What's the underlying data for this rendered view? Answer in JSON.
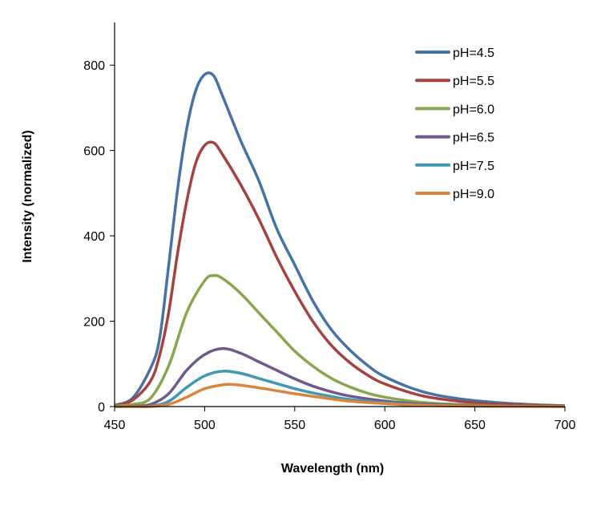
{
  "chart_data": {
    "type": "line",
    "title": "",
    "xlabel": "Wavelength (nm)",
    "ylabel": "Intensity (normalized)",
    "xlim": [
      450,
      700
    ],
    "ylim": [
      0,
      900
    ],
    "xticks": [
      450,
      500,
      550,
      600,
      650,
      700
    ],
    "yticks": [
      0,
      200,
      400,
      600,
      800
    ],
    "grid": false,
    "legend_position": "top-right",
    "series": [
      {
        "name": "pH=4.5",
        "color": "#4672A8",
        "x": [
          450,
          460,
          470,
          475,
          480,
          485,
          490,
          495,
          500,
          505,
          510,
          520,
          530,
          540,
          550,
          560,
          570,
          580,
          590,
          600,
          620,
          640,
          660,
          680,
          700
        ],
        "y": [
          3,
          20,
          90,
          160,
          330,
          510,
          650,
          740,
          778,
          775,
          727,
          623,
          530,
          417,
          332,
          248,
          182,
          135,
          98,
          70,
          36,
          19,
          10,
          5,
          2
        ]
      },
      {
        "name": "pH=5.5",
        "color": "#A5423F",
        "x": [
          450,
          460,
          470,
          475,
          480,
          485,
          490,
          495,
          500,
          505,
          510,
          520,
          530,
          540,
          550,
          560,
          570,
          580,
          590,
          600,
          620,
          640,
          660,
          680,
          700
        ],
        "y": [
          2,
          15,
          60,
          120,
          220,
          360,
          480,
          570,
          612,
          618,
          590,
          520,
          440,
          350,
          270,
          200,
          145,
          105,
          75,
          53,
          26,
          13,
          6,
          3,
          1
        ]
      },
      {
        "name": "pH=6.0",
        "color": "#89A54E",
        "x": [
          450,
          460,
          470,
          480,
          490,
          500,
          505,
          510,
          520,
          530,
          540,
          550,
          560,
          570,
          580,
          590,
          600,
          620,
          640,
          660,
          680,
          700
        ],
        "y": [
          1,
          5,
          20,
          95,
          220,
          295,
          307,
          300,
          265,
          220,
          175,
          130,
          95,
          67,
          47,
          32,
          22,
          10,
          5,
          2,
          1,
          0
        ]
      },
      {
        "name": "pH=6.5",
        "color": "#71588F",
        "x": [
          450,
          460,
          470,
          480,
          490,
          500,
          510,
          520,
          530,
          540,
          550,
          560,
          570,
          580,
          600,
          620,
          650,
          700
        ],
        "y": [
          0,
          1,
          5,
          30,
          85,
          122,
          136,
          125,
          105,
          85,
          65,
          48,
          35,
          25,
          13,
          6,
          2,
          0
        ]
      },
      {
        "name": "pH=7.5",
        "color": "#4198AF",
        "x": [
          450,
          460,
          470,
          480,
          490,
          500,
          510,
          520,
          530,
          540,
          550,
          560,
          570,
          580,
          600,
          620,
          650,
          700
        ],
        "y": [
          0,
          0,
          1,
          12,
          45,
          72,
          83,
          78,
          66,
          54,
          42,
          32,
          24,
          17,
          9,
          4,
          1,
          0
        ]
      },
      {
        "name": "pH=9.0",
        "color": "#DB843D",
        "x": [
          450,
          460,
          470,
          480,
          490,
          500,
          510,
          515,
          520,
          530,
          540,
          550,
          560,
          570,
          580,
          600,
          620,
          650,
          700
        ],
        "y": [
          0,
          0,
          0,
          5,
          22,
          42,
          51,
          52,
          50,
          44,
          37,
          30,
          24,
          18,
          13,
          7,
          3,
          1,
          0
        ]
      }
    ]
  }
}
